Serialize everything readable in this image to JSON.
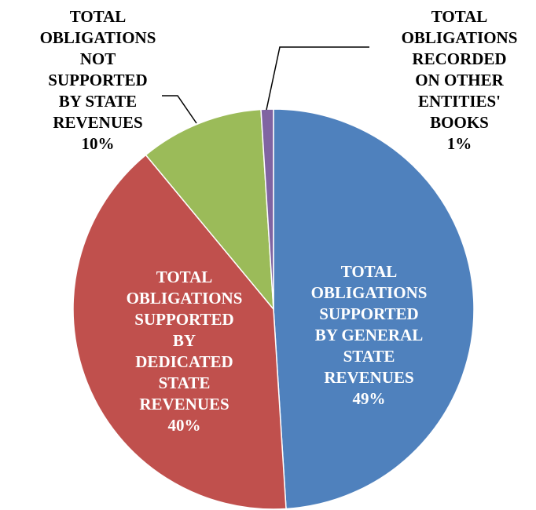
{
  "chart_data": {
    "type": "pie",
    "categories": [
      "TOTAL OBLIGATIONS SUPPORTED BY GENERAL STATE REVENUES",
      "TOTAL OBLIGATIONS SUPPORTED BY DEDICATED STATE REVENUES",
      "TOTAL OBLIGATIONS NOT SUPPORTED BY STATE REVENUES",
      "TOTAL OBLIGATIONS RECORDED ON OTHER ENTITIES' BOOKS"
    ],
    "values": [
      49,
      40,
      10,
      1
    ],
    "value_labels": [
      "49%",
      "40%",
      "10%",
      "1%"
    ],
    "colors": [
      "#4f81bd",
      "#c0504d",
      "#9bbb59",
      "#8064a2"
    ]
  }
}
